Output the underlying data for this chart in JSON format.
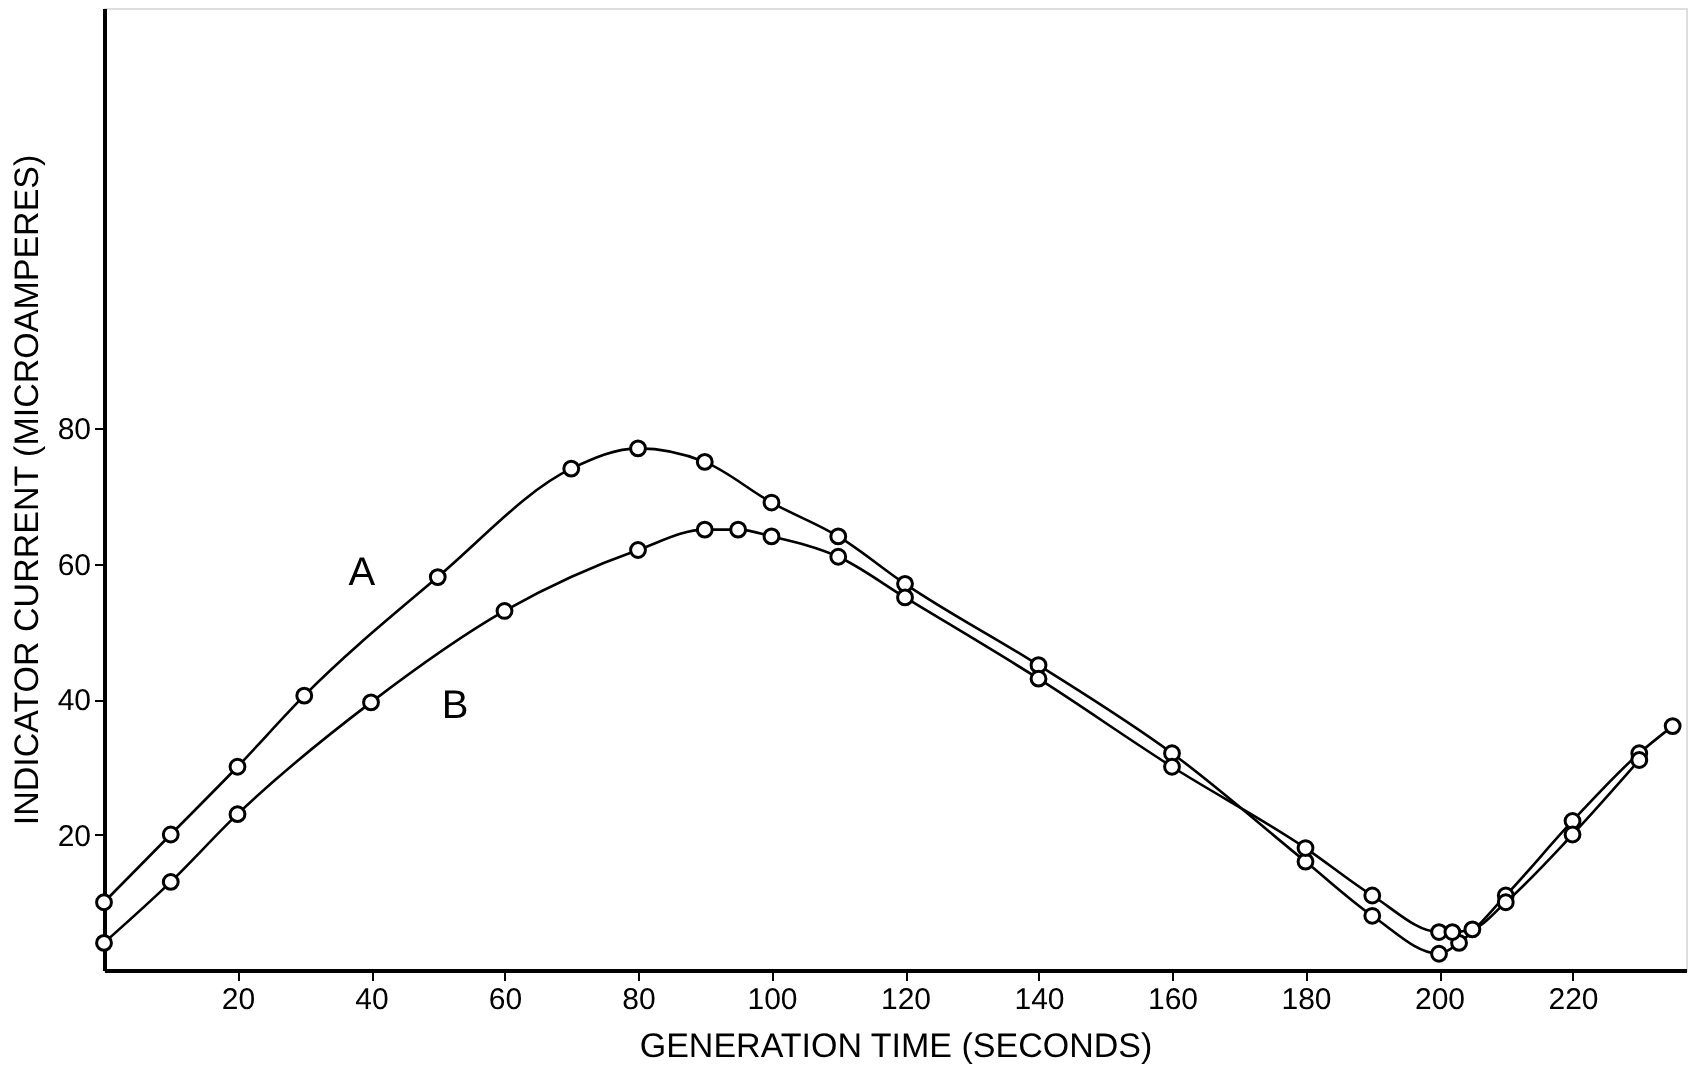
{
  "chart_data": {
    "type": "line",
    "xlabel": "GENERATION  TIME  (SECONDS)",
    "ylabel": "INDICATOR CURRENT (MICROAMPERES)",
    "xlim": [
      0,
      237
    ],
    "ylim": [
      0,
      142
    ],
    "xticks": [
      20,
      40,
      60,
      80,
      100,
      120,
      140,
      160,
      180,
      200,
      220
    ],
    "yticks": [
      20,
      40,
      60,
      80
    ],
    "grid": false,
    "legend": false,
    "marker": "circle",
    "line_style": "solid",
    "series": [
      {
        "name": "A",
        "color": "#000000",
        "x": [
          0,
          10,
          20,
          30,
          50,
          70,
          80,
          90,
          100,
          110,
          120,
          140,
          160,
          180,
          190,
          200,
          203,
          210,
          220,
          230,
          235
        ],
        "values": [
          10,
          20,
          30,
          40.5,
          58,
          74,
          77,
          75,
          69,
          64,
          57,
          45,
          32,
          16,
          8,
          2.4,
          4,
          11,
          22,
          32,
          36
        ]
      },
      {
        "name": "B",
        "color": "#000000",
        "x": [
          0,
          10,
          20,
          40,
          60,
          80,
          90,
          95,
          100,
          110,
          120,
          140,
          160,
          180,
          190,
          200,
          202,
          205,
          210,
          220,
          230
        ],
        "values": [
          4,
          13,
          23,
          39.5,
          53,
          62,
          65,
          65,
          64,
          61,
          55,
          43,
          30,
          18,
          11,
          5.6,
          5.6,
          6,
          10,
          20,
          31
        ]
      }
    ]
  }
}
